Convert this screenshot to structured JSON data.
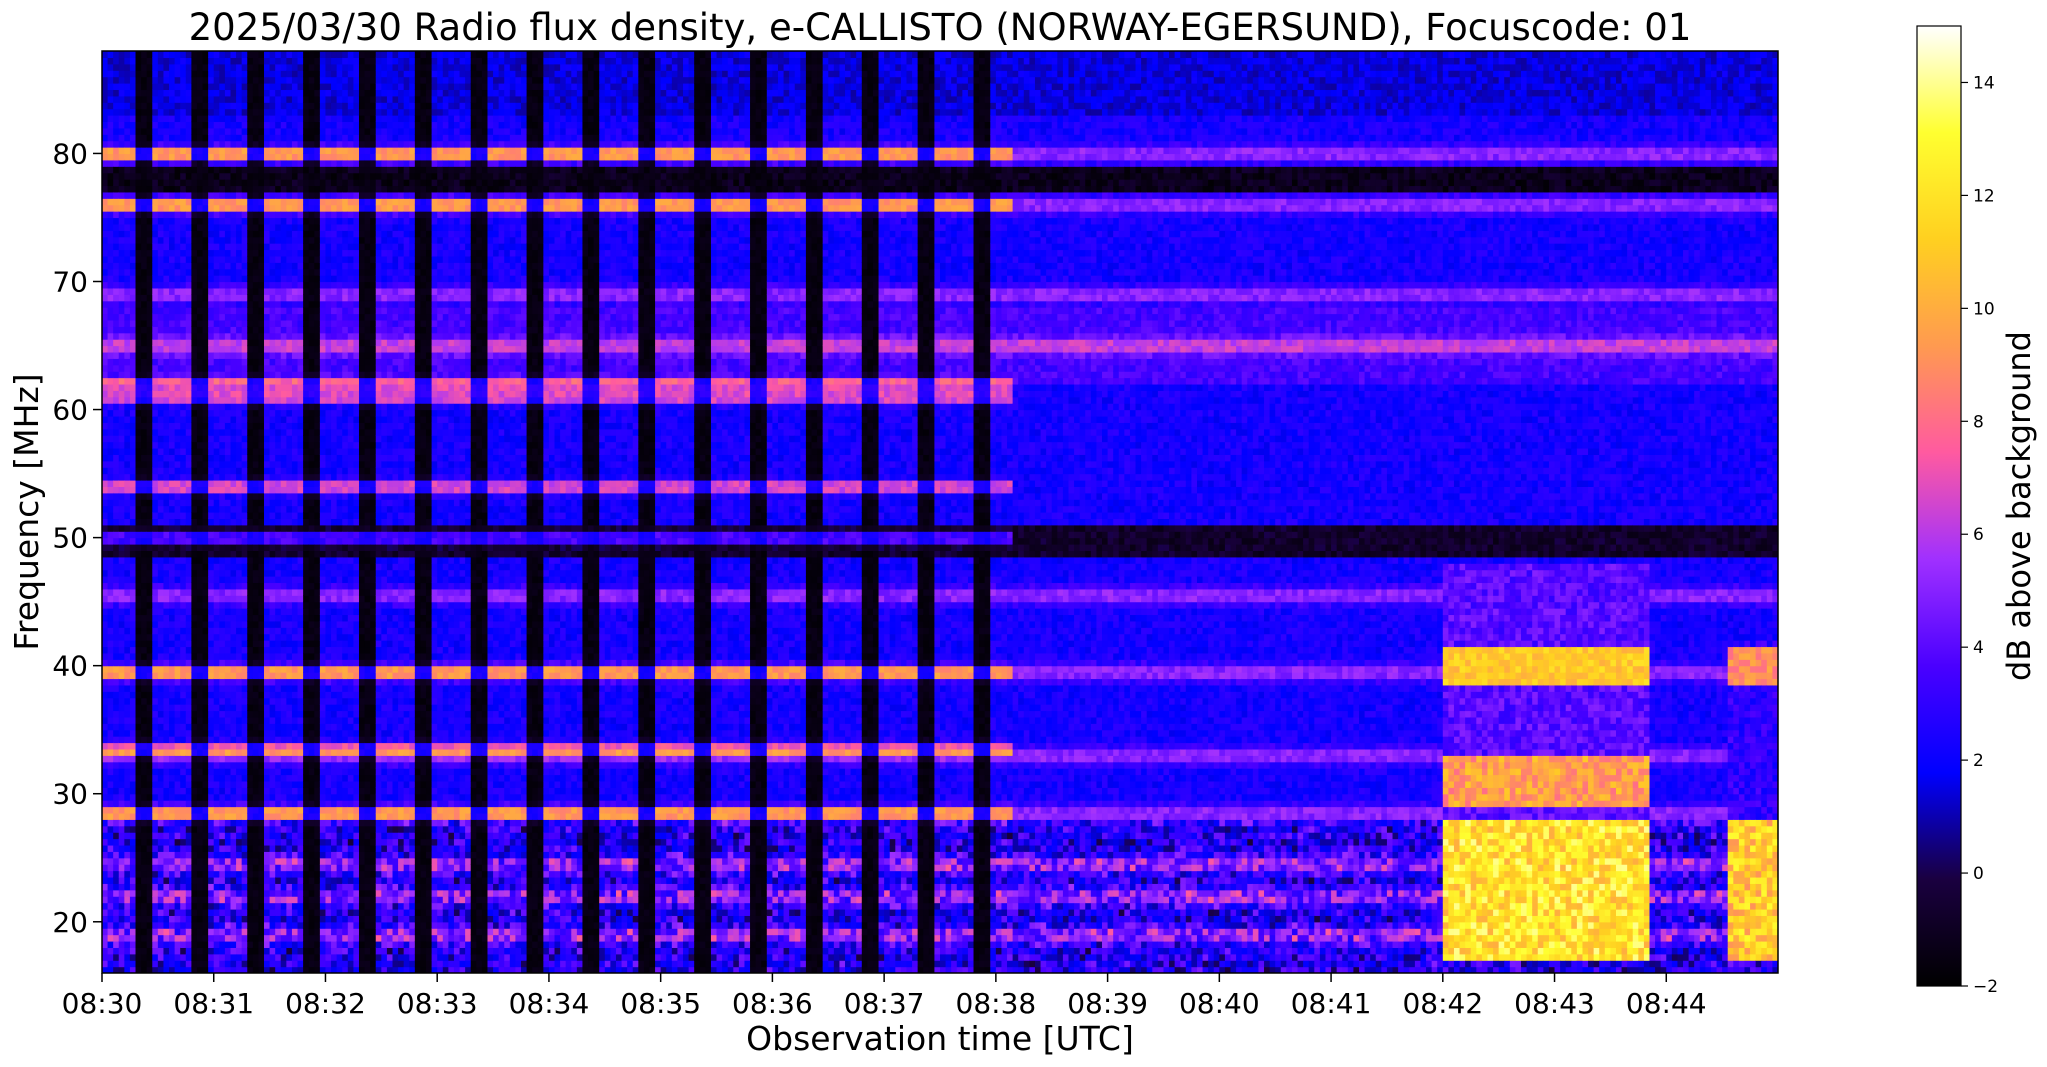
{
  "chart_data": {
    "type": "heatmap",
    "title": "2025/03/30  Radio flux density, e-CALLISTO (NORWAY-EGERSUND), Focuscode: 01",
    "xlabel": "Observation time [UTC]",
    "ylabel": "Frequency [MHz]",
    "colorbar_label": "dB above background",
    "colormap": "gnuplot2",
    "colormap_stops": [
      "#000000",
      "#1a0040",
      "#0000ff",
      "#4a00ff",
      "#a030ff",
      "#ff5aa0",
      "#ff9a50",
      "#ffd020",
      "#ffff30",
      "#ffffff"
    ],
    "x_ticks": [
      "08:30",
      "08:31",
      "08:32",
      "08:33",
      "08:34",
      "08:35",
      "08:36",
      "08:37",
      "08:38",
      "08:39",
      "08:40",
      "08:41",
      "08:42",
      "08:43",
      "08:44"
    ],
    "x_range_minutes": [
      0,
      15
    ],
    "y_ticks": [
      20,
      30,
      40,
      50,
      60,
      70,
      80
    ],
    "ylim": [
      16,
      88
    ],
    "colorbar_ticks": [
      -2,
      0,
      2,
      4,
      6,
      8,
      10,
      12,
      14
    ],
    "clim": [
      -2,
      15
    ],
    "grid": false,
    "features": {
      "sweep_gaps_end_minute": 8.15,
      "persistent_lines_mhz": [
        19,
        22,
        24.5,
        28.5,
        33,
        39.5,
        45.5,
        65,
        69,
        76,
        80
      ],
      "comb_lines_mhz": [
        28.5,
        33.5,
        39.5,
        50,
        54,
        61,
        62,
        76,
        80
      ],
      "interference_block": {
        "t_start_min": 12.0,
        "t_end_min": 13.85,
        "f_low_mhz": 17,
        "f_high_mhz": 48
      },
      "interference_block_2": {
        "t_start_min": 14.55,
        "t_end_min": 15.0,
        "f_low_mhz": 17,
        "f_high_mhz": 42
      }
    }
  }
}
